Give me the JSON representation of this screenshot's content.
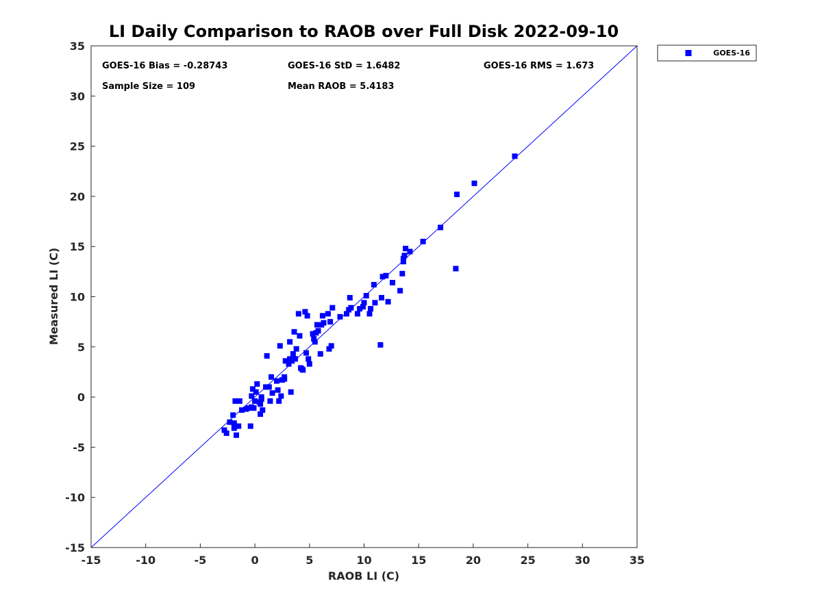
{
  "colors": {
    "series": "#0000ff",
    "axis": "#262626"
  },
  "chart_data": {
    "type": "scatter",
    "title": "LI Daily Comparison to RAOB over Full Disk 2022-09-10",
    "xlabel": "RAOB LI (C)",
    "ylabel": "Measured LI (C)",
    "xlim": [
      -15,
      35
    ],
    "ylim": [
      -15,
      35
    ],
    "xticks": [
      -15,
      -10,
      -5,
      0,
      5,
      10,
      15,
      20,
      25,
      30,
      35
    ],
    "yticks": [
      -15,
      -10,
      -5,
      0,
      5,
      10,
      15,
      20,
      25,
      30,
      35
    ],
    "grid": false,
    "legend": {
      "entries": [
        "GOES-16"
      ],
      "placement": "outside-top-right"
    },
    "reference_line": {
      "type": "one-to-one",
      "x": [
        -15,
        35
      ],
      "y": [
        -15,
        35
      ]
    },
    "stats": {
      "bias": "GOES-16 Bias = -0.28743",
      "std": "GOES-16 StD = 1.6482",
      "rms": "GOES-16 RMS = 1.673",
      "sample_size": "Sample Size = 109",
      "mean_raob": "Mean RAOB = 5.4183"
    },
    "series": [
      {
        "name": "GOES-16",
        "marker": "square",
        "points": [
          [
            -2.8,
            -3.3
          ],
          [
            -2.6,
            -3.6
          ],
          [
            -2.3,
            -2.5
          ],
          [
            -2.0,
            -1.8
          ],
          [
            -1.9,
            -2.6
          ],
          [
            -1.9,
            -3.1
          ],
          [
            -1.8,
            -0.4
          ],
          [
            -1.7,
            -3.8
          ],
          [
            -1.5,
            -2.9
          ],
          [
            -1.4,
            -0.4
          ],
          [
            -1.2,
            -1.3
          ],
          [
            -0.8,
            -1.2
          ],
          [
            -0.4,
            -2.9
          ],
          [
            -0.3,
            -1.0
          ],
          [
            -0.3,
            0.1
          ],
          [
            -0.2,
            0.8
          ],
          [
            -0.1,
            -1.1
          ],
          [
            0.0,
            -0.4
          ],
          [
            0.1,
            0.5
          ],
          [
            0.2,
            1.3
          ],
          [
            0.4,
            -0.5
          ],
          [
            0.5,
            -1.7
          ],
          [
            0.5,
            -0.7
          ],
          [
            0.6,
            -0.2
          ],
          [
            0.7,
            -1.3
          ],
          [
            1.0,
            1.0
          ],
          [
            1.1,
            4.1
          ],
          [
            1.3,
            1.0
          ],
          [
            1.4,
            -0.4
          ],
          [
            1.5,
            2.0
          ],
          [
            1.6,
            0.4
          ],
          [
            2.0,
            1.6
          ],
          [
            2.1,
            0.7
          ],
          [
            2.2,
            -0.4
          ],
          [
            2.3,
            5.1
          ],
          [
            2.4,
            0.1
          ],
          [
            2.5,
            1.7
          ],
          [
            2.7,
            2.0
          ],
          [
            2.8,
            3.6
          ],
          [
            3.1,
            3.3
          ],
          [
            3.2,
            3.8
          ],
          [
            3.2,
            5.5
          ],
          [
            3.3,
            0.5
          ],
          [
            3.4,
            3.6
          ],
          [
            3.5,
            4.3
          ],
          [
            3.6,
            6.5
          ],
          [
            3.7,
            3.8
          ],
          [
            3.8,
            4.8
          ],
          [
            4.0,
            8.3
          ],
          [
            4.1,
            6.1
          ],
          [
            4.2,
            2.9
          ],
          [
            4.3,
            2.8
          ],
          [
            4.6,
            8.5
          ],
          [
            4.7,
            4.4
          ],
          [
            4.8,
            8.1
          ],
          [
            4.9,
            3.8
          ],
          [
            5.0,
            3.3
          ],
          [
            5.3,
            6.3
          ],
          [
            5.4,
            5.8
          ],
          [
            5.5,
            5.5
          ],
          [
            5.6,
            6.4
          ],
          [
            5.7,
            7.2
          ],
          [
            5.8,
            6.6
          ],
          [
            6.0,
            4.3
          ],
          [
            6.1,
            7.2
          ],
          [
            6.2,
            8.1
          ],
          [
            6.3,
            7.4
          ],
          [
            6.7,
            8.3
          ],
          [
            6.8,
            4.8
          ],
          [
            6.9,
            7.5
          ],
          [
            7.0,
            5.1
          ],
          [
            7.1,
            8.9
          ],
          [
            7.8,
            8.0
          ],
          [
            8.4,
            8.3
          ],
          [
            8.6,
            8.7
          ],
          [
            8.7,
            9.9
          ],
          [
            8.8,
            8.9
          ],
          [
            9.4,
            8.3
          ],
          [
            9.6,
            8.8
          ],
          [
            9.9,
            9.0
          ],
          [
            10.0,
            9.4
          ],
          [
            10.2,
            10.1
          ],
          [
            10.5,
            8.3
          ],
          [
            10.6,
            8.8
          ],
          [
            10.9,
            11.2
          ],
          [
            11.0,
            9.4
          ],
          [
            11.5,
            5.2
          ],
          [
            11.6,
            9.9
          ],
          [
            11.7,
            12.0
          ],
          [
            12.0,
            12.1
          ],
          [
            12.2,
            9.5
          ],
          [
            12.6,
            11.4
          ],
          [
            13.3,
            10.6
          ],
          [
            13.5,
            12.3
          ],
          [
            13.6,
            13.5
          ],
          [
            13.6,
            13.8
          ],
          [
            13.7,
            14.1
          ],
          [
            13.8,
            14.8
          ],
          [
            14.2,
            14.5
          ],
          [
            15.4,
            15.5
          ],
          [
            17.0,
            16.9
          ],
          [
            18.4,
            12.8
          ],
          [
            18.5,
            20.2
          ],
          [
            20.1,
            21.3
          ],
          [
            23.8,
            24.0
          ],
          [
            4.4,
            2.7
          ],
          [
            2.7,
            1.8
          ],
          [
            -0.6,
            -1.1
          ],
          [
            0.6,
            0.0
          ]
        ]
      }
    ]
  }
}
